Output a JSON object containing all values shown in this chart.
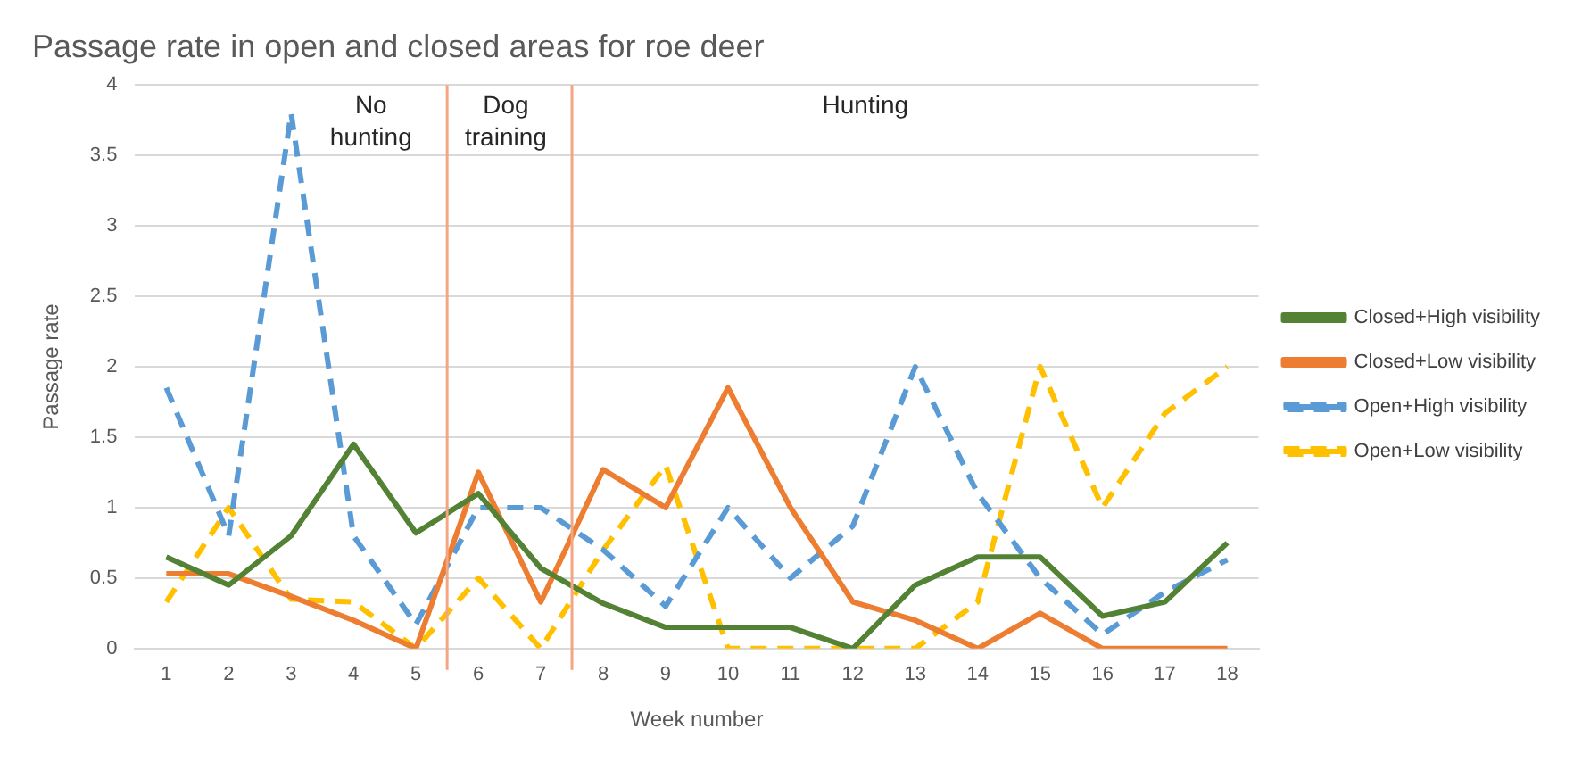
{
  "chart_data": {
    "type": "line",
    "title": "Passage rate in open and closed areas for roe deer",
    "xlabel": "Week number",
    "ylabel": "Passage rate",
    "x": [
      1,
      2,
      3,
      4,
      5,
      6,
      7,
      8,
      9,
      10,
      11,
      12,
      13,
      14,
      15,
      16,
      17,
      18
    ],
    "xlim": [
      0.5,
      18.5
    ],
    "xticks": [
      1,
      2,
      3,
      4,
      5,
      6,
      7,
      8,
      9,
      10,
      11,
      12,
      13,
      14,
      15,
      16,
      17,
      18
    ],
    "ylim": [
      0,
      4
    ],
    "yticks": [
      0,
      0.5,
      1,
      1.5,
      2,
      2.5,
      3,
      3.5,
      4
    ],
    "grid": "y",
    "legend": "right",
    "marker": "none",
    "series": [
      {
        "name": "Closed+High visibility",
        "color": "#548235",
        "line_style": "solid",
        "values": [
          0.65,
          0.45,
          0.8,
          1.45,
          0.82,
          1.1,
          0.57,
          0.32,
          0.15,
          0.15,
          0.15,
          0,
          0.45,
          0.65,
          0.65,
          0.23,
          0.33,
          0.75
        ]
      },
      {
        "name": "Closed+Low visibility",
        "color": "#ed7d31",
        "line_style": "solid",
        "values": [
          0.53,
          0.53,
          0.37,
          0.2,
          0,
          1.25,
          0.33,
          1.27,
          1,
          1.85,
          1,
          0.33,
          0.2,
          0,
          0.25,
          0,
          0,
          0
        ]
      },
      {
        "name": "Open+High visibility",
        "color": "#5b9bd5",
        "line_style": "dashed",
        "values": [
          1.85,
          0.8,
          3.8,
          0.8,
          0.17,
          1,
          1,
          0.7,
          0.3,
          1,
          0.5,
          0.87,
          2,
          1.1,
          0.5,
          0.1,
          0.4,
          0.63
        ]
      },
      {
        "name": "Open+Low visibility",
        "color": "#ffc000",
        "line_style": "dashed",
        "values": [
          0.33,
          1,
          0.35,
          0.33,
          0,
          0.5,
          0,
          0.7,
          1.3,
          0,
          0,
          0,
          0,
          0.33,
          2,
          1,
          1.67,
          2
        ]
      }
    ],
    "ref_lines": [
      {
        "axis": "x",
        "value": 5.5,
        "color": "#f4a582"
      },
      {
        "axis": "x",
        "value": 7.5,
        "color": "#f4a582"
      }
    ],
    "annotations": [
      "No\nhunting",
      "Dog\ntraining",
      "Hunting"
    ]
  }
}
